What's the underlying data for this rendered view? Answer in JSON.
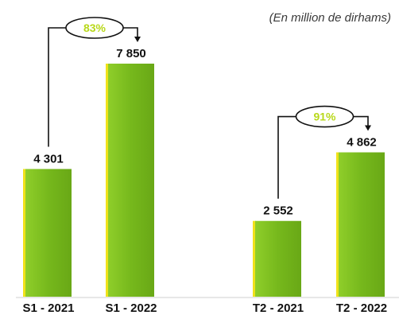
{
  "chart_data": [
    {
      "type": "bar",
      "unit": "(En million de dirhams)",
      "categories": [
        "S1 - 2021",
        "S1 - 2022"
      ],
      "values": [
        4301,
        7850
      ],
      "value_labels": [
        "4 301",
        "7 850"
      ],
      "growth_label": "83%"
    },
    {
      "type": "bar",
      "categories": [
        "T2 - 2021",
        "T2 - 2022"
      ],
      "values": [
        2552,
        4862
      ],
      "value_labels": [
        "2 552",
        "4 862"
      ],
      "growth_label": "91%"
    }
  ],
  "colors": {
    "bar": "#7cbf1e",
    "bar_dark": "#5a9a12",
    "bar_edge": "#f0e21a",
    "growth_text": "#b8d81a",
    "text": "#111111",
    "connector": "#111111",
    "baseline": "#cfcfcf"
  }
}
